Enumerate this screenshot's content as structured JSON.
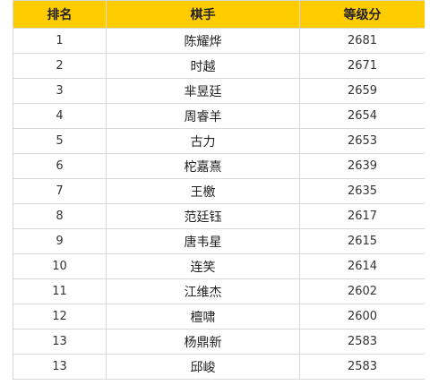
{
  "table": {
    "headers": [
      "排名",
      "棋手",
      "等级分"
    ],
    "rows": [
      {
        "rank": "1",
        "player": "陈耀烨",
        "rating": "2681"
      },
      {
        "rank": "2",
        "player": "时越",
        "rating": "2671"
      },
      {
        "rank": "3",
        "player": "芈昱廷",
        "rating": "2659"
      },
      {
        "rank": "4",
        "player": "周睿羊",
        "rating": "2654"
      },
      {
        "rank": "5",
        "player": "古力",
        "rating": "2653"
      },
      {
        "rank": "6",
        "player": "柁嘉熹",
        "rating": "2639"
      },
      {
        "rank": "7",
        "player": "王檄",
        "rating": "2635"
      },
      {
        "rank": "8",
        "player": "范廷钰",
        "rating": "2617"
      },
      {
        "rank": "9",
        "player": "唐韦星",
        "rating": "2615"
      },
      {
        "rank": "10",
        "player": "连笑",
        "rating": "2614"
      },
      {
        "rank": "11",
        "player": "江维杰",
        "rating": "2602"
      },
      {
        "rank": "12",
        "player": "檀啸",
        "rating": "2600"
      },
      {
        "rank": "13",
        "player": "杨鼎新",
        "rating": "2583"
      },
      {
        "rank": "13",
        "player": "邱峻",
        "rating": "2583"
      }
    ]
  },
  "colors": {
    "header_bg": "#ffcc00",
    "border": "#d8d8d8"
  }
}
